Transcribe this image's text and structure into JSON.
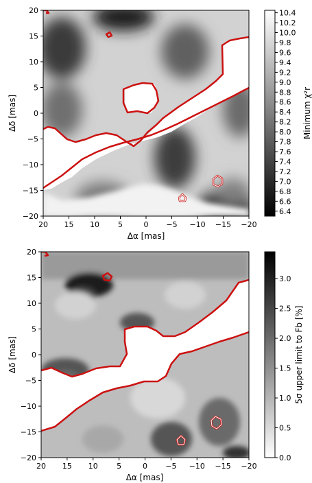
{
  "chart_data": [
    {
      "type": "heatmap",
      "xlabel": "Δα [mas]",
      "ylabel": "Δδ [mas]",
      "xlim": [
        20,
        -20
      ],
      "ylim": [
        -20,
        20
      ],
      "x_ticks": [
        "20",
        "15",
        "10",
        "5",
        "0",
        "−5",
        "−10",
        "−15",
        "−20"
      ],
      "y_ticks": [
        "20",
        "15",
        "10",
        "5",
        "0",
        "−5",
        "−10",
        "−15",
        "−20"
      ],
      "colormap": "gray",
      "colorbar": {
        "label": "Minimum χ²r",
        "min": 6.3,
        "max": 10.45,
        "ticks": [
          "10.4",
          "10.2",
          "10.0",
          "9.8",
          "9.6",
          "9.4",
          "9.2",
          "9.0",
          "8.8",
          "8.6",
          "8.4",
          "8.2",
          "8.0",
          "7.8",
          "7.6",
          "7.4",
          "7.2",
          "7.0",
          "6.8",
          "6.6",
          "6.4"
        ]
      },
      "contour_color": "#cc1111",
      "notes": "grayscale minimum reduced chi-square map with red 5-sigma contours"
    },
    {
      "type": "heatmap",
      "xlabel": "Δα [mas]",
      "ylabel": "Δδ [mas]",
      "xlim": [
        20,
        -20
      ],
      "ylim": [
        -20,
        20
      ],
      "x_ticks": [
        "20",
        "15",
        "10",
        "5",
        "0",
        "−5",
        "−10",
        "−15",
        "−20"
      ],
      "y_ticks": [
        "20",
        "15",
        "10",
        "5",
        "0",
        "−5",
        "−10",
        "−15",
        "−20"
      ],
      "colormap": "gray_r",
      "colorbar": {
        "label": "5σ upper limit to Fb [%]",
        "min": 0.0,
        "max": 3.45,
        "ticks": [
          "3.0",
          "2.5",
          "2.0",
          "1.5",
          "1.0",
          "0.5",
          "0.0"
        ]
      },
      "contour_color": "#cc1111",
      "notes": "grayscale 5-sigma upper limit to flux ratio map with red contours"
    }
  ]
}
